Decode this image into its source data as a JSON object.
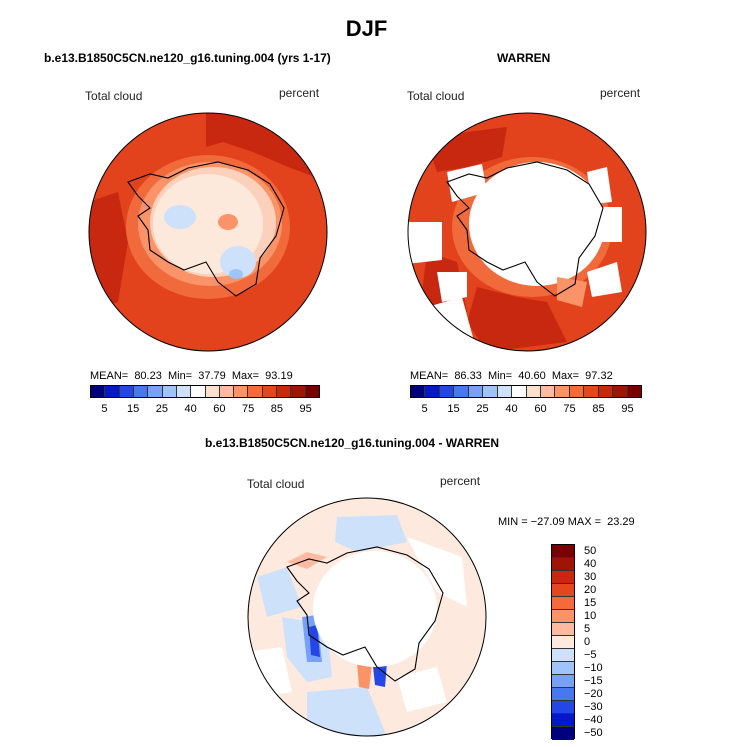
{
  "title": "DJF",
  "panel_left": {
    "title": "b.e13.B1850C5CN.ne120_g16.tuning.004 (yrs 1-17)",
    "variable": "Total cloud",
    "units": "percent",
    "stats": "MEAN=  80.23  Min=  37.79  Max=  93.19"
  },
  "panel_right": {
    "title": "WARREN",
    "variable": "Total cloud",
    "units": "percent",
    "stats": "MEAN=  86.33  Min=  40.60  Max=  97.32"
  },
  "panel_diff": {
    "title": "b.e13.B1850C5CN.ne120_g16.tuning.004 - WARREN",
    "variable": "Total cloud",
    "units": "percent",
    "stats": "MIN = −27.09 MAX =  23.29"
  },
  "colorbar_abs": {
    "colors": [
      "#00007f",
      "#0019c8",
      "#2346e6",
      "#4678f0",
      "#78a0f5",
      "#a0c3fa",
      "#cde1fa",
      "#ffffff",
      "#fde0cc",
      "#fcbba1",
      "#fa9468",
      "#f5693c",
      "#e6461e",
      "#c8280f",
      "#a01405",
      "#780000"
    ],
    "labels": [
      "5",
      "15",
      "25",
      "40",
      "60",
      "75",
      "85",
      "95"
    ]
  },
  "colorbar_diff": {
    "colors": [
      "#00007f",
      "#0019c8",
      "#2346e6",
      "#4678f0",
      "#78a0f5",
      "#a0c3fa",
      "#cde1fa",
      "#fde9de",
      "#fcbba1",
      "#fa9468",
      "#f5693c",
      "#e6461e",
      "#c8280f",
      "#a01405",
      "#780000"
    ],
    "labels": [
      "50",
      "40",
      "30",
      "20",
      "15",
      "10",
      "5",
      "0",
      "−5",
      "−10",
      "−15",
      "−20",
      "−30",
      "−40",
      "−50"
    ]
  }
}
